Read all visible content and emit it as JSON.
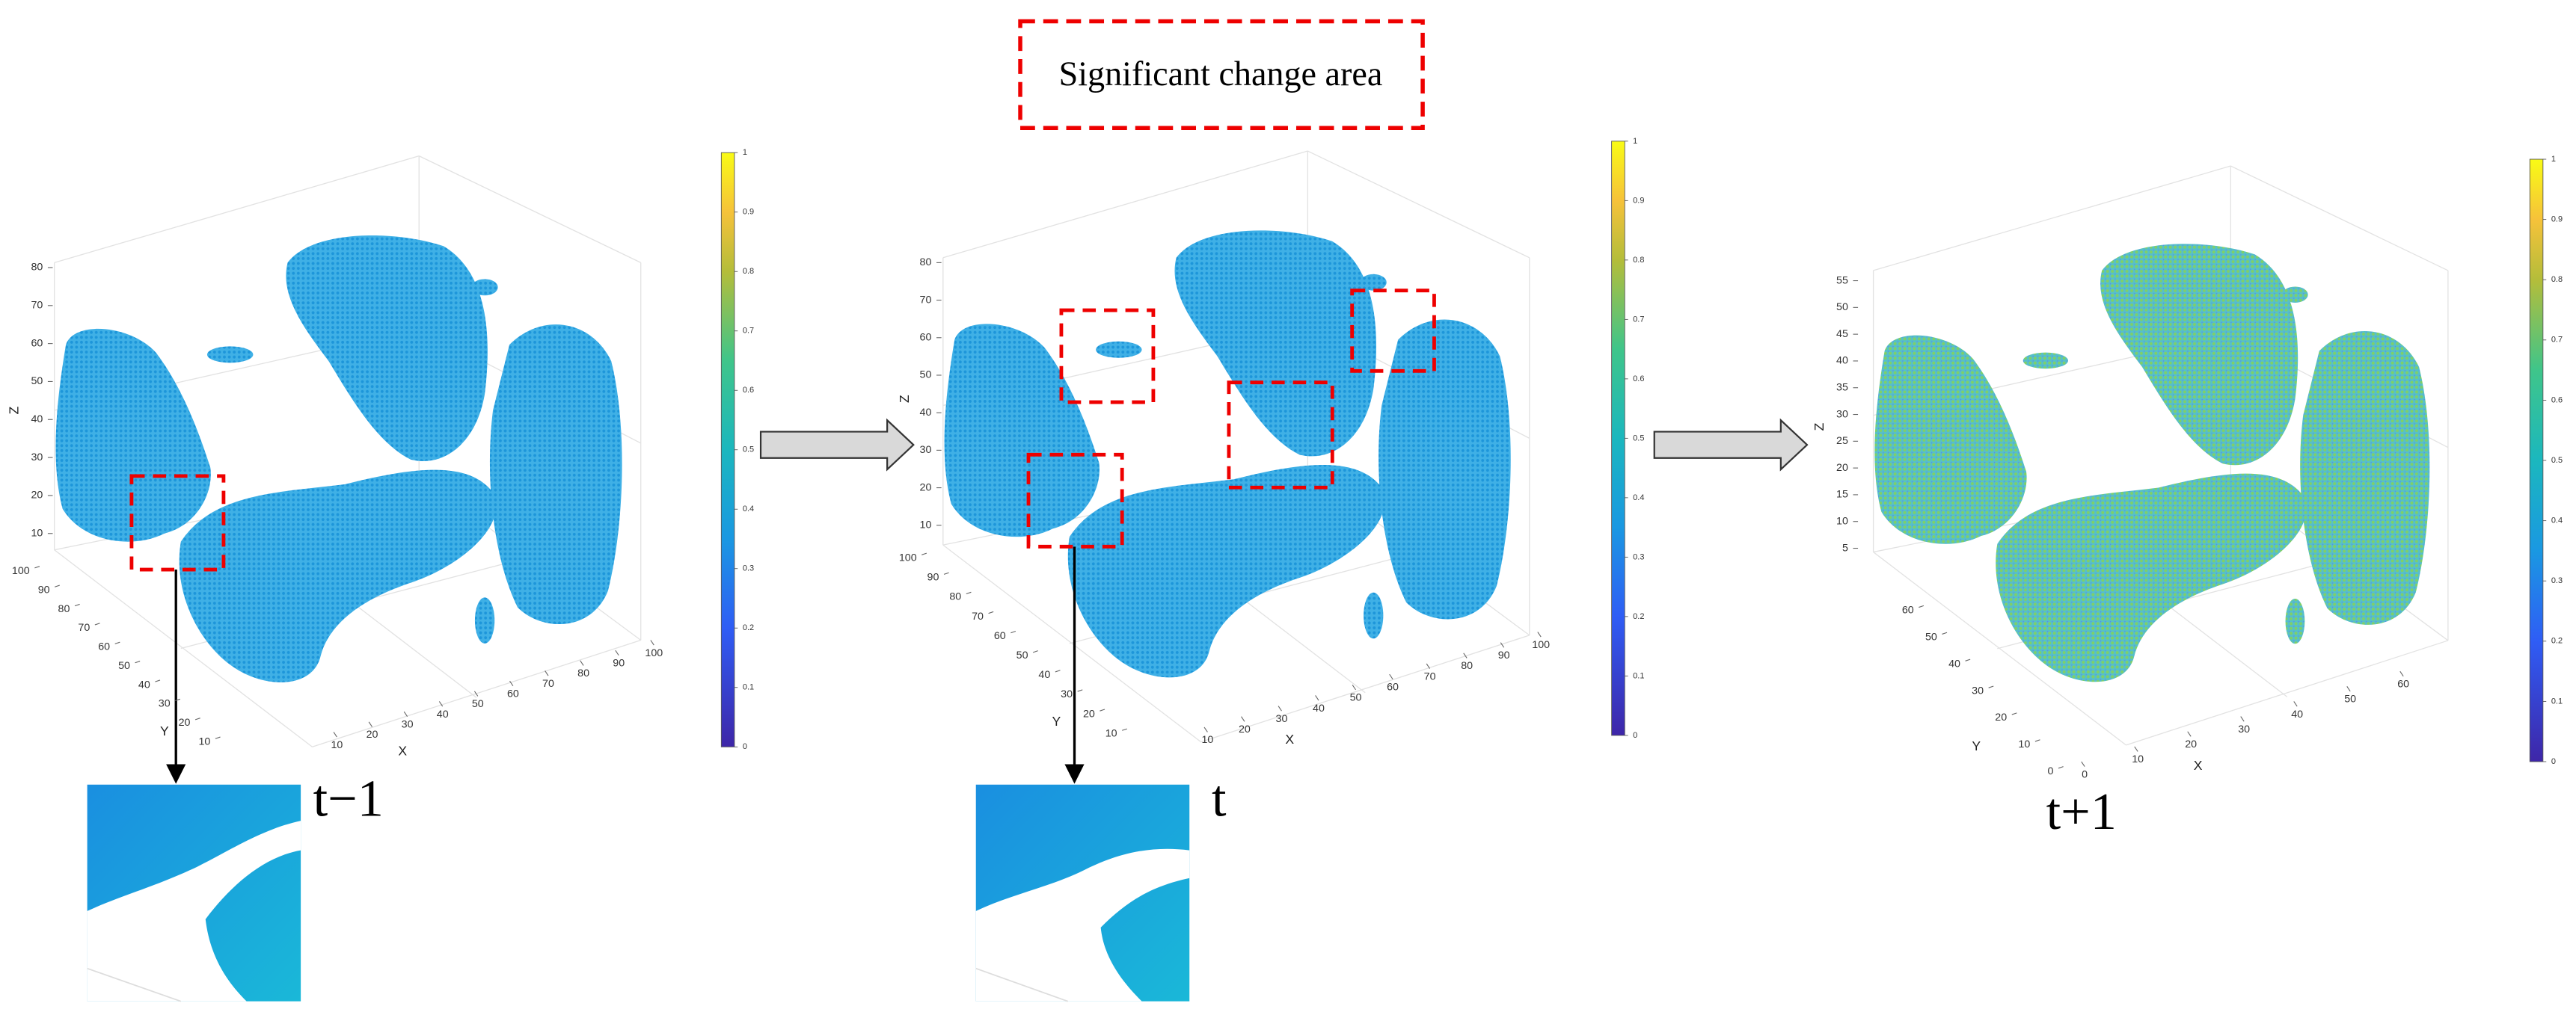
{
  "title_box": "Significant change area",
  "panels": [
    {
      "label": "t−1",
      "axis_labels": {
        "x": "X",
        "y": "Y",
        "z": "Z"
      },
      "x_ticks": [
        10,
        20,
        30,
        40,
        50,
        60,
        70,
        80,
        90,
        100
      ],
      "y_ticks": [
        10,
        20,
        30,
        40,
        50,
        60,
        70,
        80,
        90,
        100
      ],
      "z_ticks": [
        10,
        20,
        30,
        40,
        50,
        60,
        70,
        80
      ],
      "colorbar_ticks": [
        0,
        0.1,
        0.2,
        0.3,
        0.4,
        0.5,
        0.6,
        0.7,
        0.8,
        0.9,
        1
      ]
    },
    {
      "label": "t",
      "axis_labels": {
        "x": "X",
        "y": "Y",
        "z": "Z"
      },
      "x_ticks": [
        10,
        20,
        30,
        40,
        50,
        60,
        70,
        80,
        90,
        100
      ],
      "y_ticks": [
        10,
        20,
        30,
        40,
        50,
        60,
        70,
        80,
        90,
        100
      ],
      "z_ticks": [
        10,
        20,
        30,
        40,
        50,
        60,
        70,
        80
      ],
      "colorbar_ticks": [
        0,
        0.1,
        0.2,
        0.3,
        0.4,
        0.5,
        0.6,
        0.7,
        0.8,
        0.9,
        1
      ]
    },
    {
      "label": "t+1",
      "axis_labels": {
        "x": "X",
        "y": "Y",
        "z": "Z"
      },
      "x_ticks": [
        0,
        10,
        20,
        30,
        40,
        50,
        60
      ],
      "y_ticks": [
        0,
        10,
        20,
        30,
        40,
        50,
        60
      ],
      "z_ticks": [
        5,
        10,
        15,
        20,
        25,
        30,
        35,
        40,
        45,
        50,
        55
      ],
      "colorbar_ticks": [
        0,
        0.1,
        0.2,
        0.3,
        0.4,
        0.5,
        0.6,
        0.7,
        0.8,
        0.9,
        1
      ]
    }
  ]
}
